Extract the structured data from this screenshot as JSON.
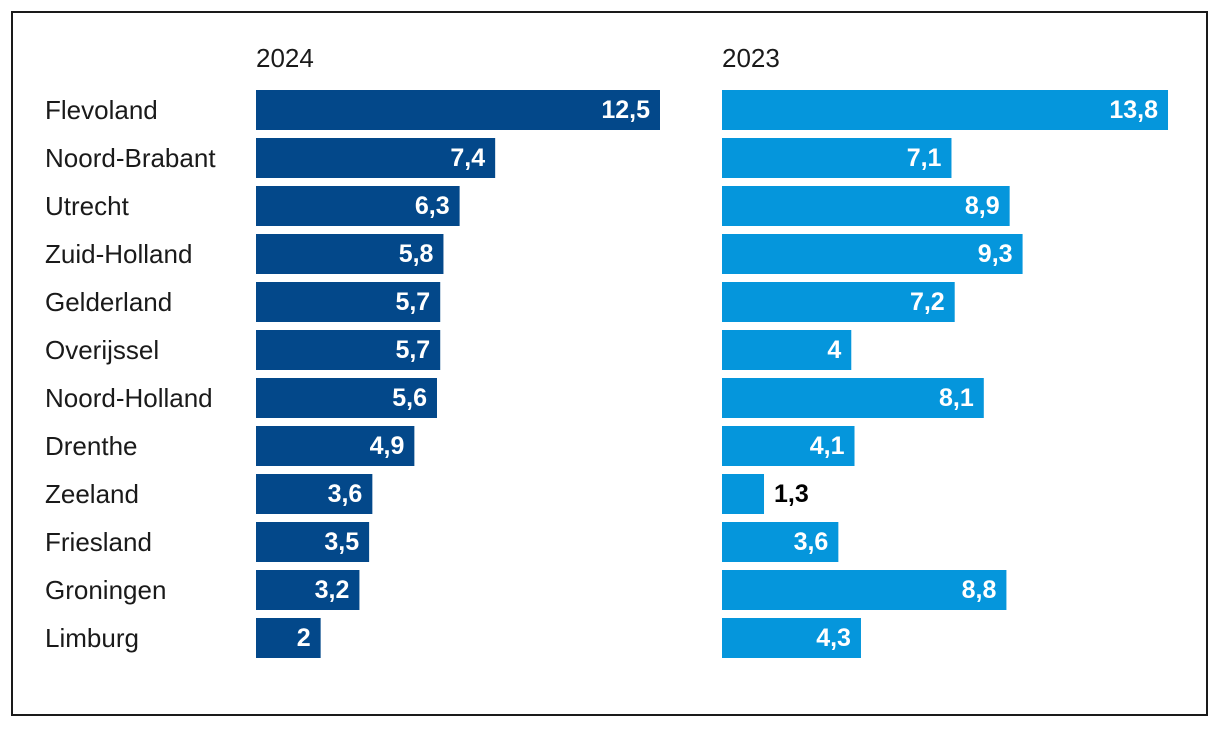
{
  "chart_data": {
    "type": "bar",
    "orientation": "horizontal",
    "decimal_separator": ",",
    "categories": [
      "Flevoland",
      "Noord-Brabant",
      "Utrecht",
      "Zuid-Holland",
      "Gelderland",
      "Overijssel",
      "Noord-Holland",
      "Drenthe",
      "Zeeland",
      "Friesland",
      "Groningen",
      "Limburg"
    ],
    "series": [
      {
        "name": "2024",
        "color": "#03488a",
        "values": [
          12.5,
          7.4,
          6.3,
          5.8,
          5.7,
          5.7,
          5.6,
          4.9,
          3.6,
          3.5,
          3.2,
          2
        ]
      },
      {
        "name": "2023",
        "color": "#0596dc",
        "values": [
          13.8,
          7.1,
          8.9,
          9.3,
          7.2,
          4,
          8.1,
          4.1,
          1.3,
          3.6,
          8.8,
          4.3
        ]
      }
    ],
    "title": "",
    "xlabel": "",
    "ylabel": "",
    "xlim": [
      0,
      14
    ],
    "grid": false,
    "legend": "none"
  }
}
